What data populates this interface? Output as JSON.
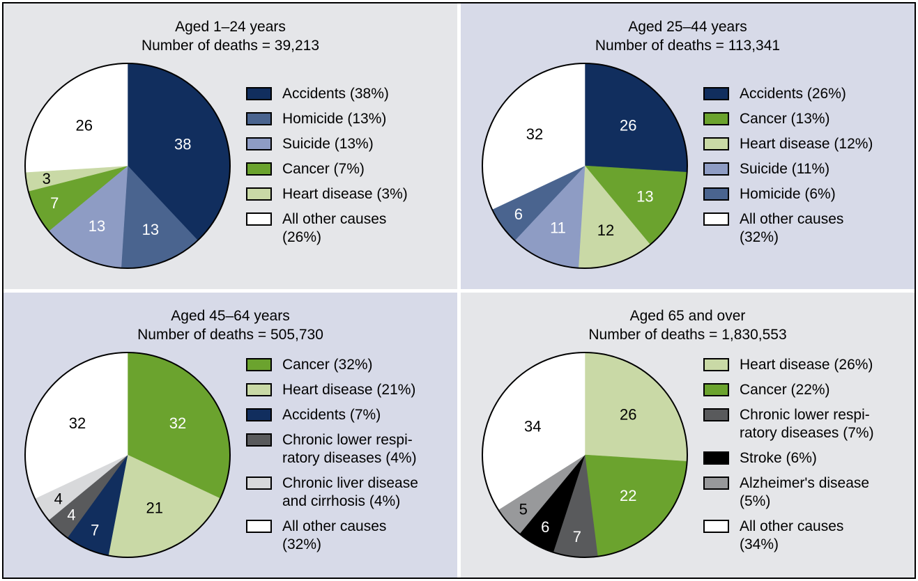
{
  "chart_data": [
    {
      "type": "pie",
      "title": "Aged 1–24 years",
      "subtitle": "Number of deaths = 39,213",
      "panel_bg": "#E5E6E9",
      "start_angle_deg": 0,
      "direction": "clockwise",
      "legend_position": "right",
      "slices": [
        {
          "label": "Accidents",
          "pct": 38,
          "color": "#112E5E",
          "value_color": "#FFFFFF",
          "legend": "Accidents (38%)"
        },
        {
          "label": "Homicide",
          "pct": 13,
          "color": "#4A648F",
          "value_color": "#FFFFFF",
          "legend": "Homicide (13%)"
        },
        {
          "label": "Suicide",
          "pct": 13,
          "color": "#8E9CC4",
          "value_color": "#FFFFFF",
          "legend": "Suicide (13%)"
        },
        {
          "label": "Cancer",
          "pct": 7,
          "color": "#6BA32E",
          "value_color": "#FFFFFF",
          "legend": "Cancer (7%)"
        },
        {
          "label": "Heart disease",
          "pct": 3,
          "color": "#C9D9A6",
          "value_color": "#000000",
          "legend": "Heart disease (3%)"
        },
        {
          "label": "All other causes",
          "pct": 26,
          "color": "#FFFFFF",
          "value_color": "#000000",
          "legend": "All other causes\n(26%)"
        }
      ]
    },
    {
      "type": "pie",
      "title": "Aged 25–44 years",
      "subtitle": "Number of deaths = 113,341",
      "panel_bg": "#D7DAE8",
      "start_angle_deg": 0,
      "direction": "clockwise",
      "legend_position": "right",
      "slices": [
        {
          "label": "Accidents",
          "pct": 26,
          "color": "#112E5E",
          "value_color": "#FFFFFF",
          "legend": "Accidents (26%)"
        },
        {
          "label": "Cancer",
          "pct": 13,
          "color": "#6BA32E",
          "value_color": "#FFFFFF",
          "legend": "Cancer (13%)"
        },
        {
          "label": "Heart disease",
          "pct": 12,
          "color": "#C9D9A6",
          "value_color": "#000000",
          "legend": "Heart disease (12%)"
        },
        {
          "label": "Suicide",
          "pct": 11,
          "color": "#8E9CC4",
          "value_color": "#FFFFFF",
          "legend": "Suicide (11%)"
        },
        {
          "label": "Homicide",
          "pct": 6,
          "color": "#4A648F",
          "value_color": "#FFFFFF",
          "legend": "Homicide (6%)"
        },
        {
          "label": "All other causes",
          "pct": 32,
          "color": "#FFFFFF",
          "value_color": "#000000",
          "legend": "All other causes\n(32%)"
        }
      ]
    },
    {
      "type": "pie",
      "title": "Aged 45–64 years",
      "subtitle": "Number of deaths = 505,730",
      "panel_bg": "#D7DAE8",
      "start_angle_deg": 0,
      "direction": "clockwise",
      "legend_position": "right",
      "slices": [
        {
          "label": "Cancer",
          "pct": 32,
          "color": "#6BA32E",
          "value_color": "#FFFFFF",
          "legend": "Cancer (32%)"
        },
        {
          "label": "Heart disease",
          "pct": 21,
          "color": "#C9D9A6",
          "value_color": "#000000",
          "legend": "Heart disease (21%)"
        },
        {
          "label": "Accidents",
          "pct": 7,
          "color": "#112E5E",
          "value_color": "#FFFFFF",
          "legend": "Accidents (7%)"
        },
        {
          "label": "Chronic lower respiratory diseases",
          "pct": 4,
          "color": "#595A5C",
          "value_color": "#FFFFFF",
          "legend": "Chronic lower respi-\nratory diseases (4%)"
        },
        {
          "label": "Chronic liver disease and cirrhosis",
          "pct": 4,
          "color": "#D8D9DB",
          "value_color": "#000000",
          "legend": "Chronic liver disease\nand cirrhosis (4%)"
        },
        {
          "label": "All other causes",
          "pct": 32,
          "color": "#FFFFFF",
          "value_color": "#000000",
          "legend": "All other causes\n(32%)"
        }
      ]
    },
    {
      "type": "pie",
      "title": "Aged 65 and over",
      "subtitle": "Number of deaths = 1,830,553",
      "panel_bg": "#E5E6E9",
      "start_angle_deg": 0,
      "direction": "clockwise",
      "legend_position": "right",
      "slices": [
        {
          "label": "Heart disease",
          "pct": 26,
          "color": "#C9D9A6",
          "value_color": "#000000",
          "legend": "Heart disease (26%)"
        },
        {
          "label": "Cancer",
          "pct": 22,
          "color": "#6BA32E",
          "value_color": "#FFFFFF",
          "legend": "Cancer (22%)"
        },
        {
          "label": "Chronic lower respiratory diseases",
          "pct": 7,
          "color": "#595A5C",
          "value_color": "#FFFFFF",
          "legend": "Chronic lower respi-\nratory diseases (7%)"
        },
        {
          "label": "Stroke",
          "pct": 6,
          "color": "#000000",
          "value_color": "#FFFFFF",
          "legend": "Stroke (6%)"
        },
        {
          "label": "Alzheimer's disease",
          "pct": 5,
          "color": "#98999B",
          "value_color": "#000000",
          "legend": "Alzheimer's disease\n(5%)"
        },
        {
          "label": "All other causes",
          "pct": 34,
          "color": "#FFFFFF",
          "value_color": "#000000",
          "legend": "All other causes\n(34%)"
        }
      ]
    }
  ]
}
